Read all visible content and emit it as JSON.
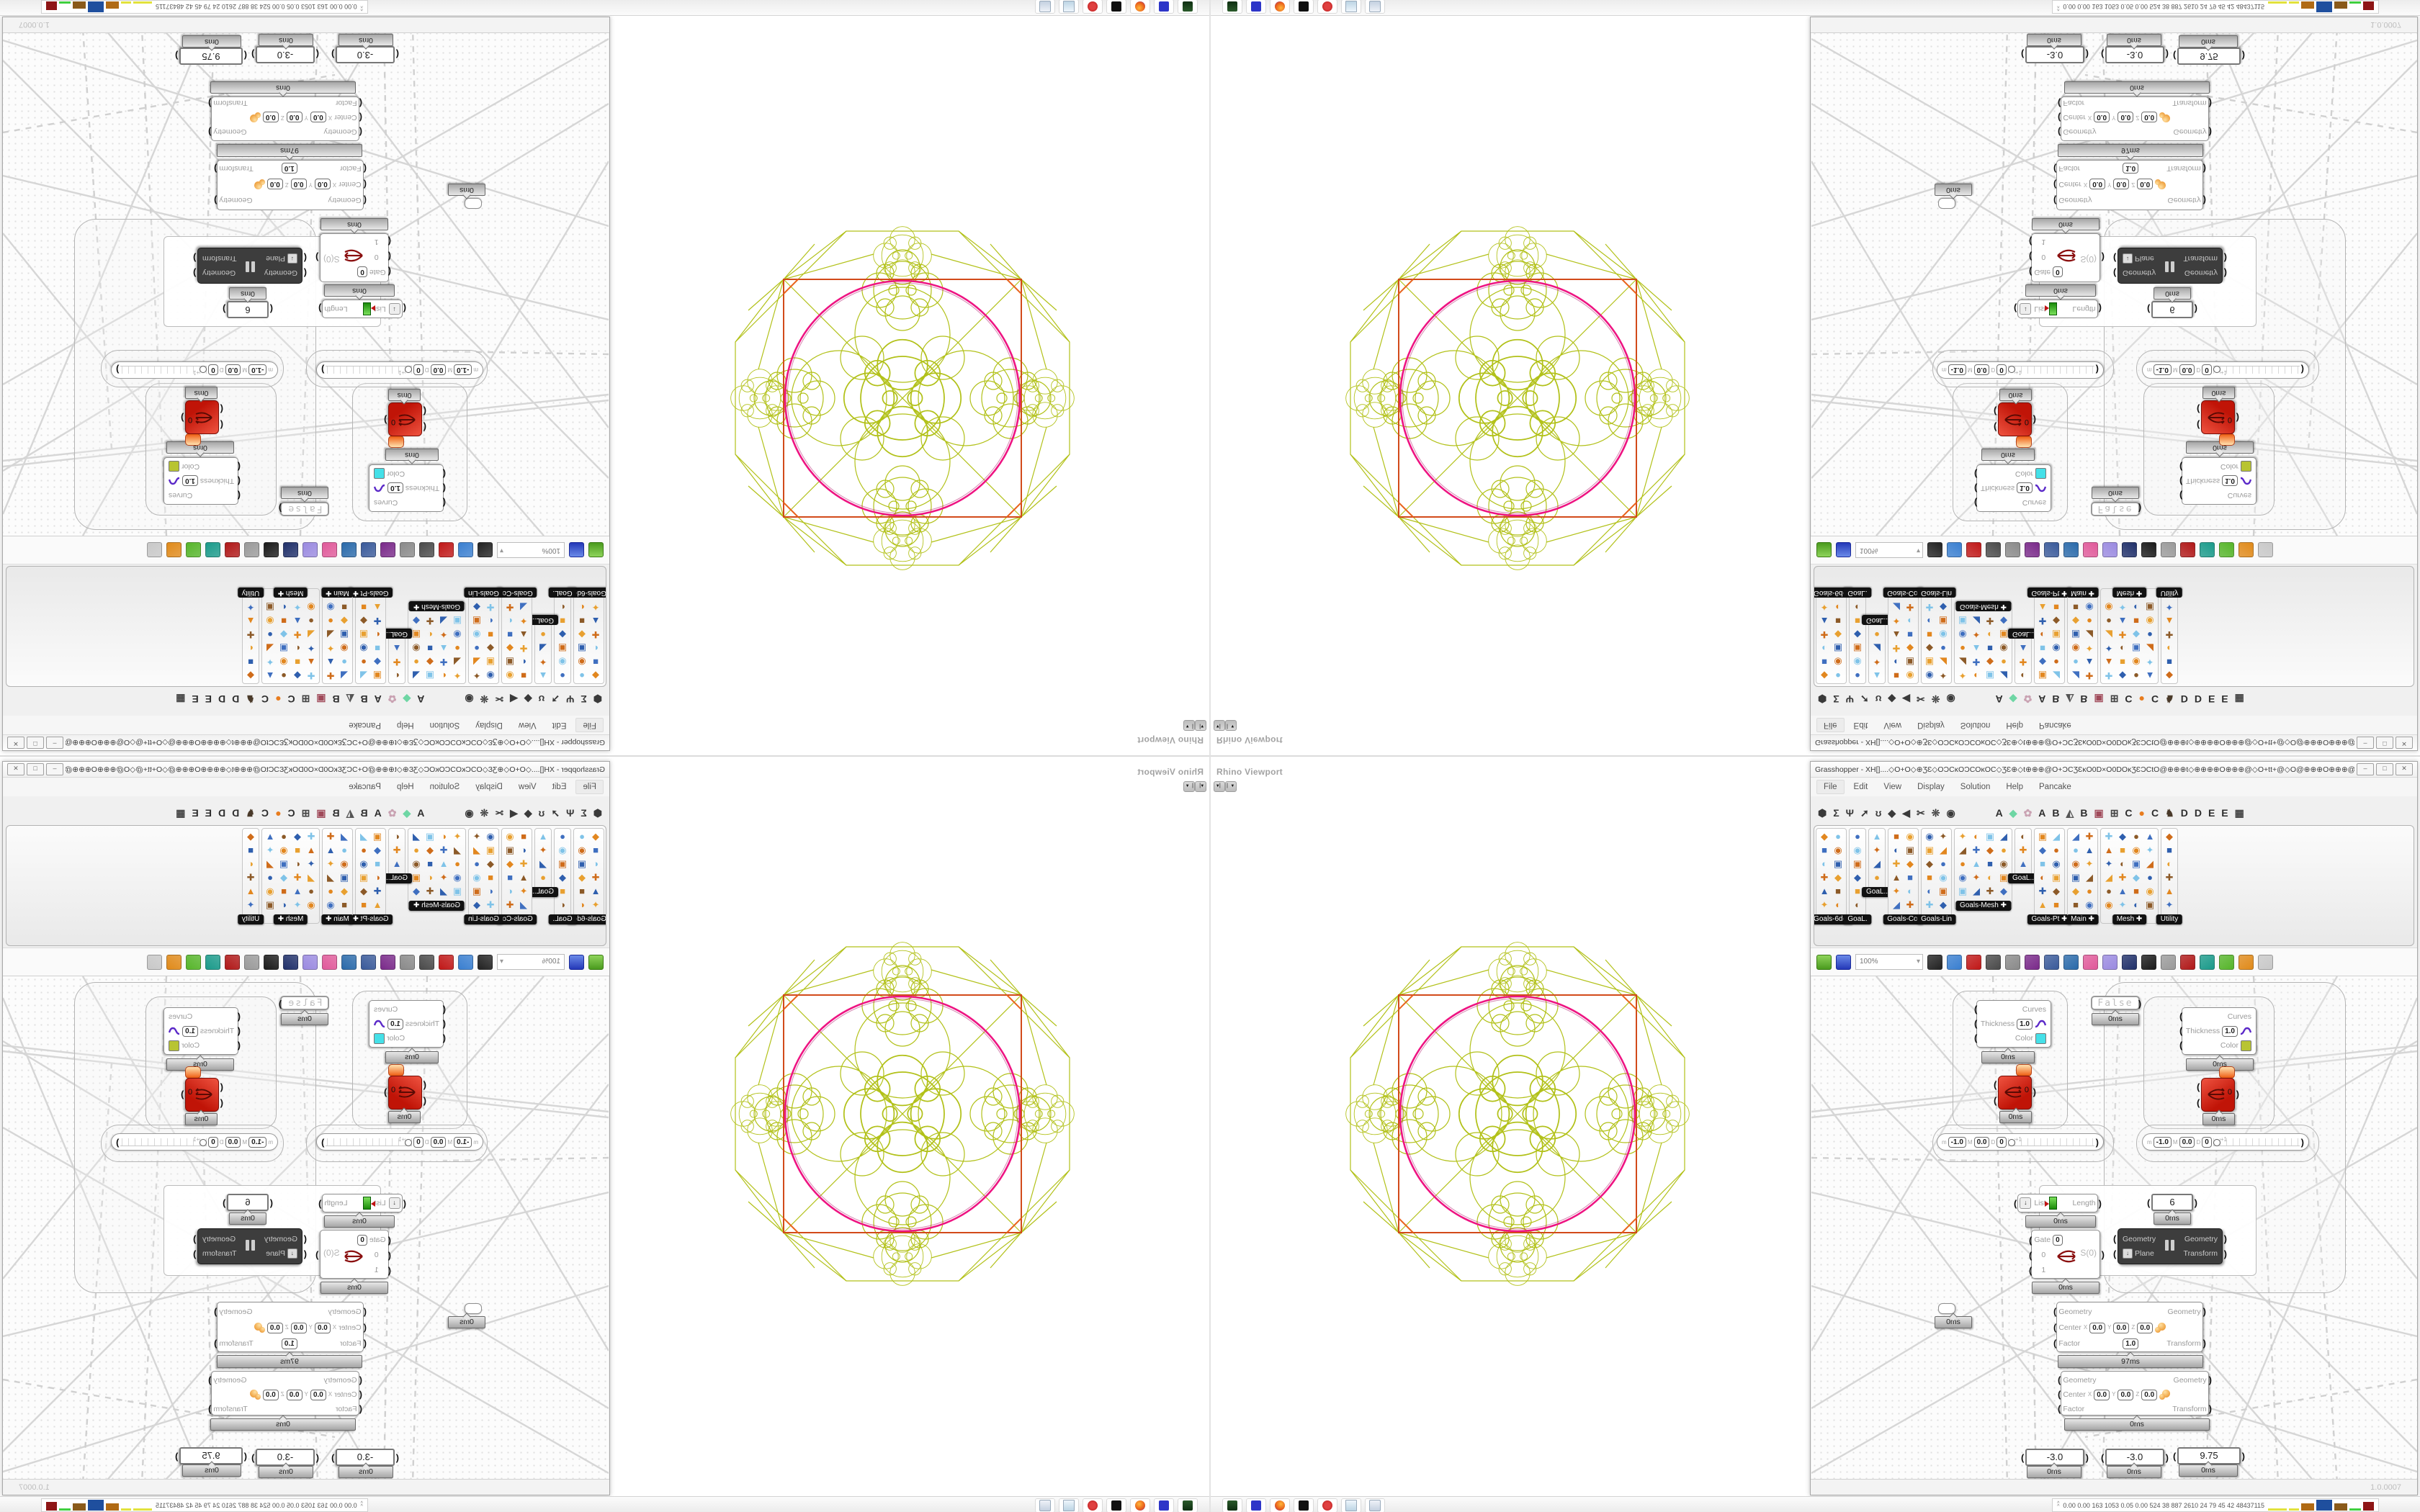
{
  "viewport": {
    "label": "Rhino Viewport"
  },
  "grasshopper": {
    "title": "Grasshopper - XH[]....◇O+O◇⊕ƷƐ◇OƆCĸOƆCOĸOC◇ƷƐ⊕◇t⊕⊕⊕@O+ƆCƷƐĸO0D×O0DOĸƷƐƆCtO@⊕⊕⊕t◇⊕⊕⊕⊕O⊕⊕⊕@◇O+tt+@◇O@⊕⊕⊕O⊕⊕⊕@◇t⊕⊕⊕@O+ƆCƷƐĸO0D×O0...",
    "window_buttons": [
      "–",
      "□",
      "✕"
    ],
    "menu": [
      "File",
      "Edit",
      "View",
      "Display",
      "Solution",
      "Help",
      "Pancake"
    ],
    "tabs": [
      {
        "g": "⬢",
        "c": "#3a3a3a"
      },
      {
        "g": "Σ",
        "c": "#3a3a3a"
      },
      {
        "g": "Ψ",
        "c": "#3a3a3a"
      },
      {
        "g": "➚",
        "c": "#3a3a3a"
      },
      {
        "g": "ʊ",
        "c": "#3a3a3a"
      },
      {
        "g": "◆",
        "c": "#3a3a3a"
      },
      {
        "g": "◀",
        "c": "#3a3a3a"
      },
      {
        "g": "✂",
        "c": "#3a3a3a"
      },
      {
        "g": "❊",
        "c": "#3a3a3a"
      },
      {
        "g": "◉",
        "c": "#3a3a3a"
      },
      {
        "g": "A",
        "c": "#2d2d2d"
      },
      {
        "g": "◆",
        "c": "#6ed6a4"
      },
      {
        "g": "✿",
        "c": "#c9a2b2"
      },
      {
        "g": "A",
        "c": "#2d2d2d"
      },
      {
        "g": "B",
        "c": "#2d2d2d"
      },
      {
        "g": "◭",
        "c": "#555555"
      },
      {
        "g": "B",
        "c": "#2d2d2d"
      },
      {
        "g": "▣",
        "c": "#a04a5a"
      },
      {
        "g": "⊞",
        "c": "#444444"
      },
      {
        "g": "C",
        "c": "#2d2d2d"
      },
      {
        "g": "●",
        "c": "#e87c1e"
      },
      {
        "g": "C",
        "c": "#2d2d2d"
      },
      {
        "g": "♞",
        "c": "#4a3a2a"
      },
      {
        "g": "D",
        "c": "#2d2d2d"
      },
      {
        "g": "D",
        "c": "#2d2d2d"
      },
      {
        "g": "E",
        "c": "#2d2d2d"
      },
      {
        "g": "E",
        "c": "#2d2d2d"
      },
      {
        "g": "▦",
        "c": "#444444"
      }
    ],
    "ribbon_panels": [
      {
        "label": "Goals-6dof",
        "cols": 2,
        "rows": 6,
        "plus": false
      },
      {
        "label": "GoaL.",
        "cols": 1,
        "rows": 6,
        "plus": false
      },
      {
        "label": "GoaL..",
        "cols": 1,
        "rows": 4,
        "plus": false
      },
      {
        "label": "Goals-Col",
        "cols": 2,
        "rows": 6,
        "plus": false
      },
      {
        "label": "Goals-Lin",
        "cols": 2,
        "rows": 6,
        "plus": false
      },
      {
        "label": "Goals-Mesh",
        "cols": 4,
        "rows": 5,
        "plus": true
      },
      {
        "label": "GoaL..",
        "cols": 1,
        "rows": 3,
        "plus": false
      },
      {
        "label": "Goals-Pt",
        "cols": 2,
        "rows": 6,
        "plus": true
      },
      {
        "label": "Main",
        "cols": 2,
        "rows": 6,
        "plus": true
      },
      {
        "label": "Mesh",
        "cols": 4,
        "rows": 6,
        "plus": true
      },
      {
        "label": "Utility",
        "cols": 1,
        "rows": 6,
        "plus": false
      }
    ],
    "canvas_toolbar": {
      "zoom": "100%",
      "icons": [
        {
          "name": "open-file-icon",
          "c": "#5aa52a"
        },
        {
          "name": "save-file-icon",
          "c": "#2c47c8"
        },
        {
          "name": "zoom-extents-icon",
          "c": "#222222"
        },
        {
          "name": "preview-eye-icon",
          "c": "#3a7fd0"
        },
        {
          "name": "sketch-pen-icon",
          "c": "#c01818"
        },
        {
          "name": "exit-door-icon",
          "c": "#4a4a4a"
        },
        {
          "name": "at-sketch-icon",
          "c": "#8a8a8a"
        },
        {
          "name": "gha-badge-icon",
          "c": "#7a2a8a"
        },
        {
          "name": "document-icon",
          "c": "#3a5a9a"
        },
        {
          "name": "finder-icon",
          "c": "#2a6aaa"
        },
        {
          "name": "bag-question-icon",
          "c": "#e05a9a"
        },
        {
          "name": "balloon-icon",
          "c": "#9a8ae0"
        },
        {
          "name": "weave-icon",
          "c": "#20306a"
        },
        {
          "name": "camera-icon",
          "c": "#1a1a1a"
        },
        {
          "name": "rings-icon",
          "c": "#9a9a9a"
        },
        {
          "name": "barrel-icon",
          "c": "#b01818"
        },
        {
          "name": "pin-green-icon",
          "c": "#1a9a8a"
        },
        {
          "name": "pin-gray-icon",
          "c": "#56b52a"
        },
        {
          "name": "pin-orange-icon",
          "c": "#e08a1a"
        },
        {
          "name": "lasso-icon",
          "c": "#c8c8c8"
        }
      ]
    },
    "components": {
      "toggle": {
        "label": "False",
        "time": "0ms"
      },
      "preview_left": {
        "row1": "Curves",
        "row2": "Thickness",
        "thickness": "1.0",
        "row3": "Color",
        "swatch": "#45e0e8",
        "time": "0ms"
      },
      "preview_right": {
        "row1": "Curves",
        "row2": "Thickness",
        "thickness": "1.0",
        "row3": "Color",
        "swatch": "#b8c431",
        "time": "0ms"
      },
      "solver_left": {
        "out": "0",
        "time": "0ms"
      },
      "solver_right": {
        "out": "0",
        "time": "0ms"
      },
      "slider_left": {
        "m_label": "m",
        "m": "-1.0",
        "M_label": "M",
        "M": "0.0",
        "D_label": "D",
        "D": "0",
        "tick": "+1"
      },
      "slider_right": {
        "m_label": "m",
        "m": "-1.0",
        "M_label": "M",
        "M": "0.0",
        "D_label": "D",
        "D": "0",
        "tick": "+1"
      },
      "relay": {
        "time": "0ms"
      },
      "list_length": {
        "input": "List",
        "output": "Length",
        "time": "0ms"
      },
      "value_panel": {
        "value": "6",
        "time": "0ms"
      },
      "stream_gate": {
        "gate_label": "Gate",
        "gate_value": "0",
        "opt0": "0",
        "opt1": "1",
        "output": "S(0)",
        "time": "0ms"
      },
      "orient": {
        "in1": "Geometry",
        "in2": "Plane",
        "out1": "Geometry",
        "out2": "Transform"
      },
      "scale_top": {
        "in1": "Geometry",
        "center": "Center",
        "xl": "X",
        "x": "0.0",
        "yl": "Y",
        "y": "0.0",
        "zl": "Z",
        "z": "0.0",
        "factor_label": "Factor",
        "factor": "1.0",
        "out1": "Geometry",
        "out2": "Transform",
        "time": "97ms"
      },
      "scale_bottom": {
        "in1": "Geometry",
        "center": "Center",
        "xl": "X",
        "x": "0.0",
        "yl": "Y",
        "y": "0.0",
        "zl": "Z",
        "z": "0.0",
        "factor_label": "Factor",
        "out1": "Geometry",
        "out2": "Transform",
        "time": "0ms"
      },
      "bottom_panels": [
        {
          "value": "-3.0",
          "time": "0ms"
        },
        {
          "value": "-3.0",
          "time": "0ms"
        },
        {
          "value": "9.75",
          "time": "0ms"
        }
      ]
    },
    "status": {
      "version": "1.0.0007"
    }
  },
  "figure": {
    "stroke_wire": "#b2c119",
    "stroke_circle": "#ee1482",
    "stroke_square": "#d24a1a",
    "stroke_corner": "#e8641e"
  },
  "taskbar": {
    "icons": [
      "drive-icon",
      "floppy-icon",
      "firefox-icon",
      "inkscape-icon",
      "rhino-icon",
      "notepad-icon",
      "calculator-icon"
    ],
    "sysmon_text": "0.00 0.00 163 1053 0.05 0.00 524 38 887 2610 24 79 45 42 48437115",
    "blocks": [
      {
        "w": 26,
        "h": 3,
        "c": "#e2e23c"
      },
      {
        "w": 14,
        "h": 3,
        "c": "#e2e23c"
      },
      {
        "w": 18,
        "h": 10,
        "c": "#b06a14"
      },
      {
        "w": 22,
        "h": 15,
        "c": "#1f4f9e"
      },
      {
        "w": 18,
        "h": 10,
        "c": "#8a5a1a"
      },
      {
        "w": 16,
        "h": 3,
        "c": "#3fcf3f"
      },
      {
        "w": 15,
        "h": 12,
        "c": "#8e1616"
      }
    ]
  }
}
